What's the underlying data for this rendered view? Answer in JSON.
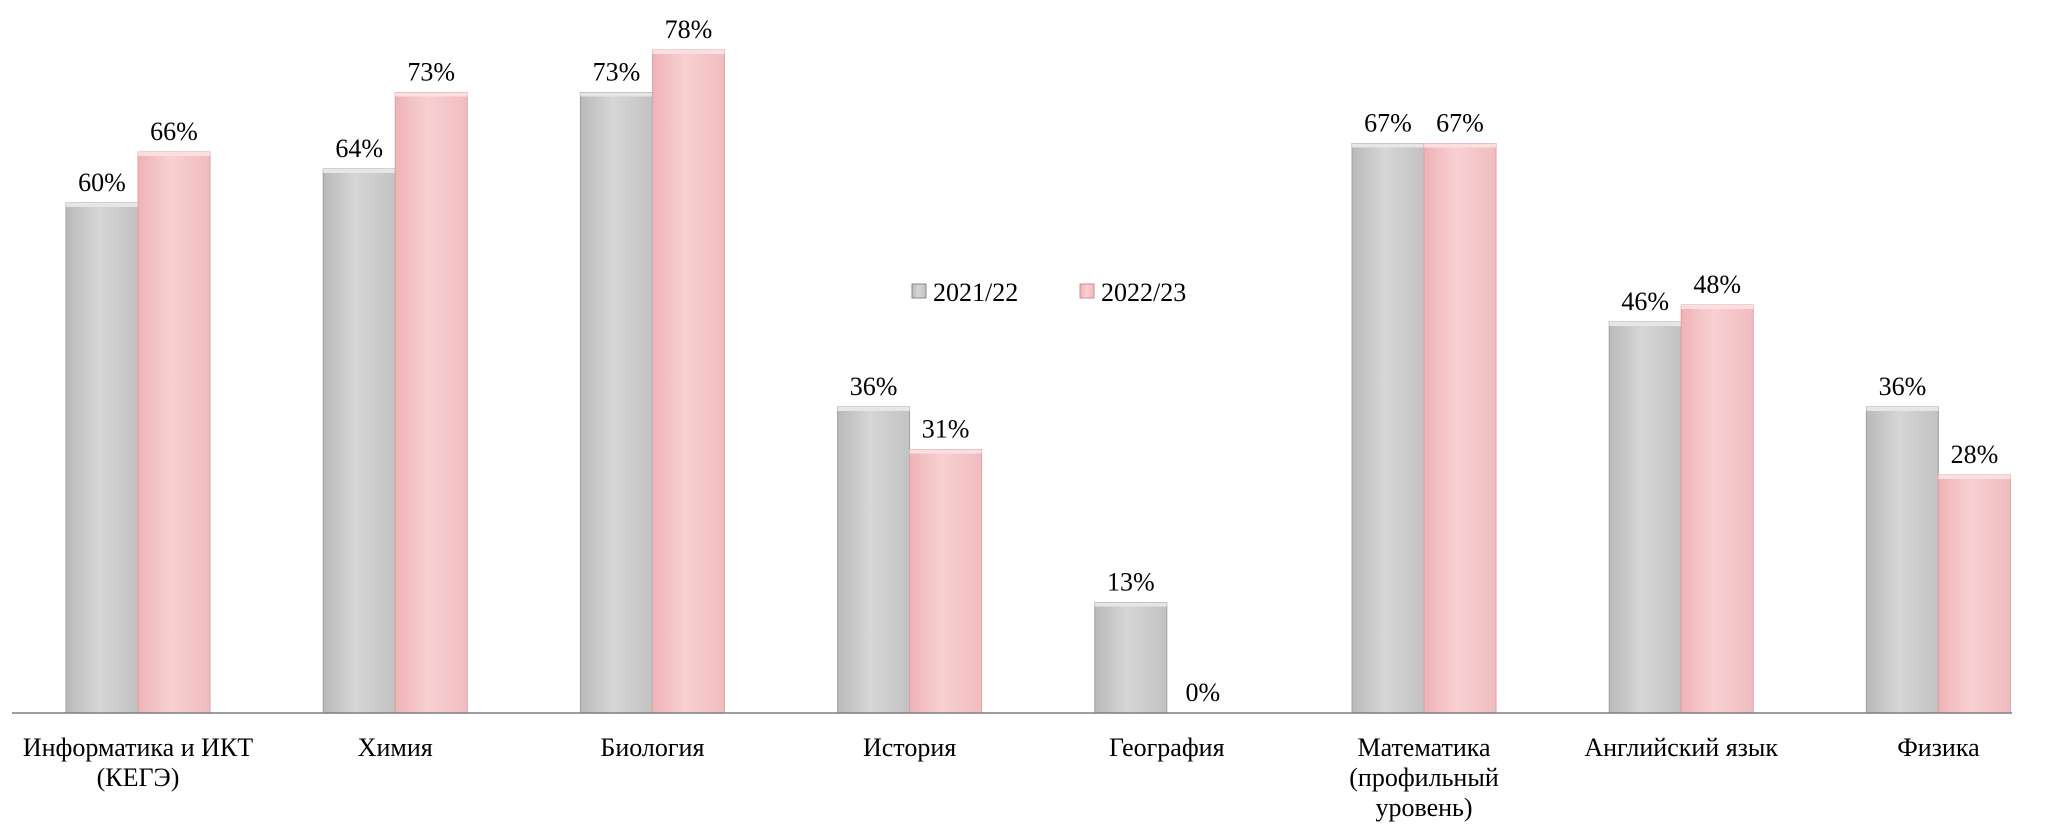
{
  "chart_data": {
    "type": "bar",
    "title": "",
    "xlabel": "",
    "ylabel": "",
    "ylim": [
      0,
      80
    ],
    "unit": "%",
    "grid": false,
    "legend_position": "center",
    "categories": [
      [
        "Информатика и ИКТ",
        "(КЕГЭ)"
      ],
      [
        "Химия"
      ],
      [
        "Биология"
      ],
      [
        "История"
      ],
      [
        "География"
      ],
      [
        "Математика",
        "(профильный",
        "уровень)"
      ],
      [
        "Английский  язык"
      ],
      [
        "Физика"
      ]
    ],
    "series": [
      {
        "name": "2021/22",
        "color": "#c8c8c8",
        "values": [
          60,
          64,
          73,
          36,
          13,
          67,
          46,
          36
        ]
      },
      {
        "name": "2022/23",
        "color": "#f4c2c4",
        "values": [
          66,
          73,
          78,
          31,
          0,
          67,
          48,
          28
        ]
      }
    ]
  }
}
